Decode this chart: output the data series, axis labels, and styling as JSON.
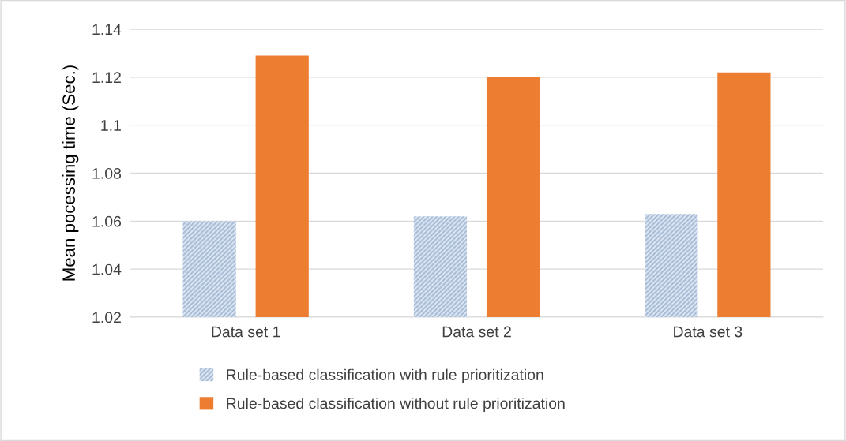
{
  "chart_data": {
    "type": "bar",
    "ylabel": "Mean pocessing time (Sec.)",
    "categories": [
      "Data set 1",
      "Data set 2",
      "Data set 3"
    ],
    "series": [
      {
        "name": "Rule-based classification with rule prioritization",
        "color": "#a9bfd9",
        "values": [
          1.06,
          1.062,
          1.063
        ]
      },
      {
        "name": "Rule-based classification without rule prioritization",
        "color": "#ed7d31",
        "values": [
          1.129,
          1.12,
          1.122
        ]
      }
    ],
    "ylim": [
      1.02,
      1.14
    ],
    "yticks": [
      1.02,
      1.04,
      1.06,
      1.08,
      1.1,
      1.12,
      1.14
    ],
    "grid": "y",
    "legend": "bottom"
  }
}
